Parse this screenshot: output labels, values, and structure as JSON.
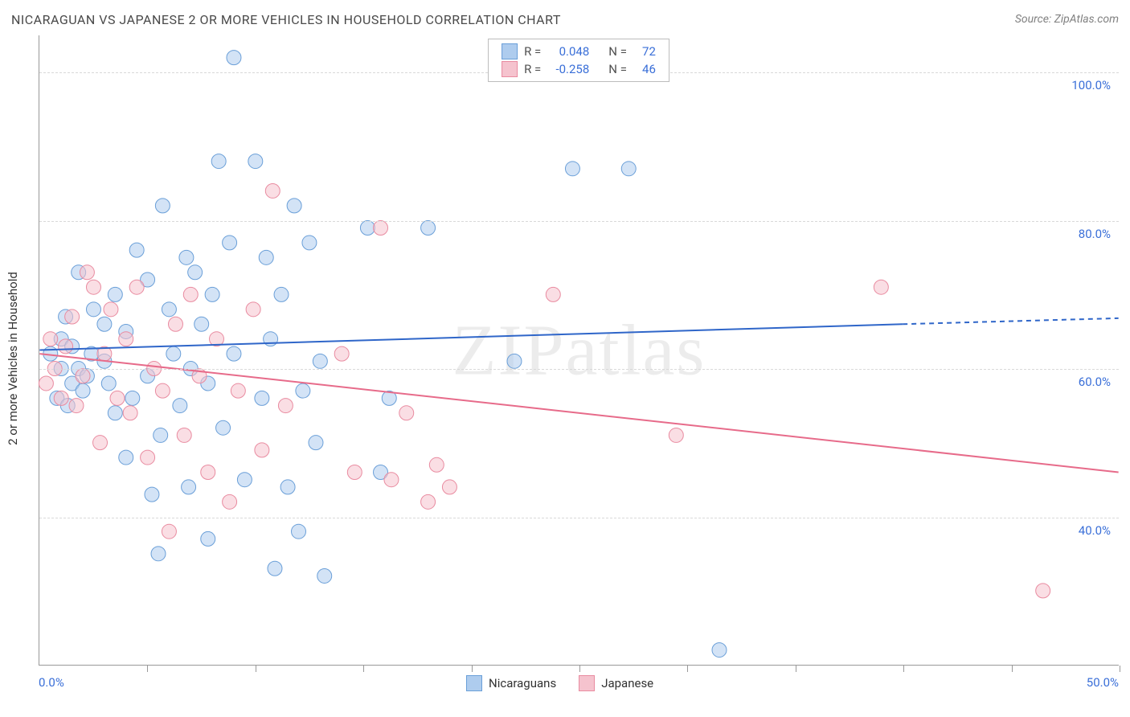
{
  "header": {
    "title": "NICARAGUAN VS JAPANESE 2 OR MORE VEHICLES IN HOUSEHOLD CORRELATION CHART",
    "source": "Source: ZipAtlas.com"
  },
  "chart": {
    "type": "scatter",
    "watermark": "ZIPatlas",
    "y_axis": {
      "label": "2 or more Vehicles in Household",
      "min": 20,
      "max": 105,
      "ticks": [
        40,
        60,
        80,
        100
      ],
      "tick_labels": [
        "40.0%",
        "60.0%",
        "80.0%",
        "100.0%"
      ],
      "tick_label_color": "#3a6fd8",
      "grid_color": "#d9d9d9",
      "grid_dashed": true,
      "label_fontsize": 15
    },
    "x_axis": {
      "min": 0,
      "max": 50,
      "ticks": [
        0,
        5,
        10,
        15,
        20,
        25,
        30,
        35,
        40,
        45,
        50
      ],
      "end_labels": {
        "left": "0.0%",
        "right": "50.0%"
      },
      "tick_label_color": "#3a6fd8"
    },
    "series": [
      {
        "name": "Nicaraguans",
        "color_fill": "#aeccee",
        "color_stroke": "#6a9fd8",
        "trend": {
          "y_at_xmin": 62.5,
          "y_at_solid_end": 66.0,
          "solid_end_x": 40,
          "y_at_xmax": 66.8,
          "color": "#2f66c9",
          "width": 2
        },
        "points": [
          [
            0.5,
            62
          ],
          [
            0.8,
            56
          ],
          [
            1.0,
            64
          ],
          [
            1.0,
            60
          ],
          [
            1.2,
            67
          ],
          [
            1.3,
            55
          ],
          [
            1.5,
            58
          ],
          [
            1.5,
            63
          ],
          [
            1.8,
            60
          ],
          [
            1.8,
            73
          ],
          [
            2.0,
            57
          ],
          [
            2.2,
            59
          ],
          [
            2.4,
            62
          ],
          [
            2.5,
            68
          ],
          [
            3.0,
            61
          ],
          [
            3.0,
            66
          ],
          [
            3.2,
            58
          ],
          [
            3.5,
            54
          ],
          [
            3.5,
            70
          ],
          [
            4.0,
            65
          ],
          [
            4.0,
            48
          ],
          [
            4.3,
            56
          ],
          [
            4.5,
            76
          ],
          [
            5.0,
            59
          ],
          [
            5.0,
            72
          ],
          [
            5.2,
            43
          ],
          [
            5.5,
            35
          ],
          [
            5.6,
            51
          ],
          [
            5.7,
            82
          ],
          [
            6.0,
            68
          ],
          [
            6.2,
            62
          ],
          [
            6.5,
            55
          ],
          [
            6.8,
            75
          ],
          [
            6.9,
            44
          ],
          [
            7.0,
            60
          ],
          [
            7.2,
            73
          ],
          [
            7.5,
            66
          ],
          [
            7.8,
            58
          ],
          [
            7.8,
            37
          ],
          [
            8.0,
            70
          ],
          [
            8.3,
            88
          ],
          [
            8.5,
            52
          ],
          [
            8.8,
            77
          ],
          [
            9.0,
            62
          ],
          [
            9.0,
            102
          ],
          [
            9.5,
            45
          ],
          [
            10.0,
            88
          ],
          [
            10.3,
            56
          ],
          [
            10.5,
            75
          ],
          [
            10.7,
            64
          ],
          [
            10.9,
            33
          ],
          [
            11.2,
            70
          ],
          [
            11.5,
            44
          ],
          [
            11.8,
            82
          ],
          [
            12.0,
            38
          ],
          [
            12.2,
            57
          ],
          [
            12.5,
            77
          ],
          [
            12.8,
            50
          ],
          [
            13.0,
            61
          ],
          [
            13.2,
            32
          ],
          [
            15.2,
            79
          ],
          [
            15.8,
            46
          ],
          [
            16.2,
            56
          ],
          [
            18.0,
            79
          ],
          [
            22.0,
            61
          ],
          [
            24.7,
            87
          ],
          [
            27.3,
            87
          ],
          [
            31.5,
            22
          ]
        ]
      },
      {
        "name": "Japanese",
        "color_fill": "#f5c3ce",
        "color_stroke": "#e98ba0",
        "trend": {
          "y_at_xmin": 62.0,
          "y_at_solid_end": 46.0,
          "solid_end_x": 50,
          "y_at_xmax": 46.0,
          "color": "#e76b8a",
          "width": 2
        },
        "points": [
          [
            0.3,
            58
          ],
          [
            0.5,
            64
          ],
          [
            0.7,
            60
          ],
          [
            1.0,
            56
          ],
          [
            1.2,
            63
          ],
          [
            1.5,
            67
          ],
          [
            1.7,
            55
          ],
          [
            2.0,
            59
          ],
          [
            2.2,
            73
          ],
          [
            2.5,
            71
          ],
          [
            2.8,
            50
          ],
          [
            3.0,
            62
          ],
          [
            3.3,
            68
          ],
          [
            3.6,
            56
          ],
          [
            4.0,
            64
          ],
          [
            4.2,
            54
          ],
          [
            4.5,
            71
          ],
          [
            5.0,
            48
          ],
          [
            5.3,
            60
          ],
          [
            5.7,
            57
          ],
          [
            6.0,
            38
          ],
          [
            6.3,
            66
          ],
          [
            6.7,
            51
          ],
          [
            7.0,
            70
          ],
          [
            7.4,
            59
          ],
          [
            7.8,
            46
          ],
          [
            8.2,
            64
          ],
          [
            8.8,
            42
          ],
          [
            9.2,
            57
          ],
          [
            9.9,
            68
          ],
          [
            10.3,
            49
          ],
          [
            10.8,
            84
          ],
          [
            11.4,
            55
          ],
          [
            14.0,
            62
          ],
          [
            14.6,
            46
          ],
          [
            15.8,
            79
          ],
          [
            16.3,
            45
          ],
          [
            17.0,
            54
          ],
          [
            18.0,
            42
          ],
          [
            18.4,
            47
          ],
          [
            19.0,
            44
          ],
          [
            23.8,
            70
          ],
          [
            29.5,
            51
          ],
          [
            39.0,
            71
          ],
          [
            46.5,
            30
          ]
        ]
      }
    ],
    "marker_radius": 9,
    "marker_opacity": 0.55,
    "background_color": "#ffffff",
    "border_color": "#999999"
  },
  "stats_legend": {
    "border_color": "#bcbcbc",
    "rows": [
      {
        "swatch_fill": "#aeccee",
        "swatch_stroke": "#6a9fd8",
        "r_label": "R =",
        "r_value": "0.048",
        "n_label": "N =",
        "n_value": "72"
      },
      {
        "swatch_fill": "#f5c3ce",
        "swatch_stroke": "#e98ba0",
        "r_label": "R =",
        "r_value": "-0.258",
        "n_label": "N =",
        "n_value": "46"
      }
    ]
  },
  "bottom_legend": {
    "items": [
      {
        "swatch_fill": "#aeccee",
        "swatch_stroke": "#6a9fd8",
        "label": "Nicaraguans"
      },
      {
        "swatch_fill": "#f5c3ce",
        "swatch_stroke": "#e98ba0",
        "label": "Japanese"
      }
    ]
  }
}
